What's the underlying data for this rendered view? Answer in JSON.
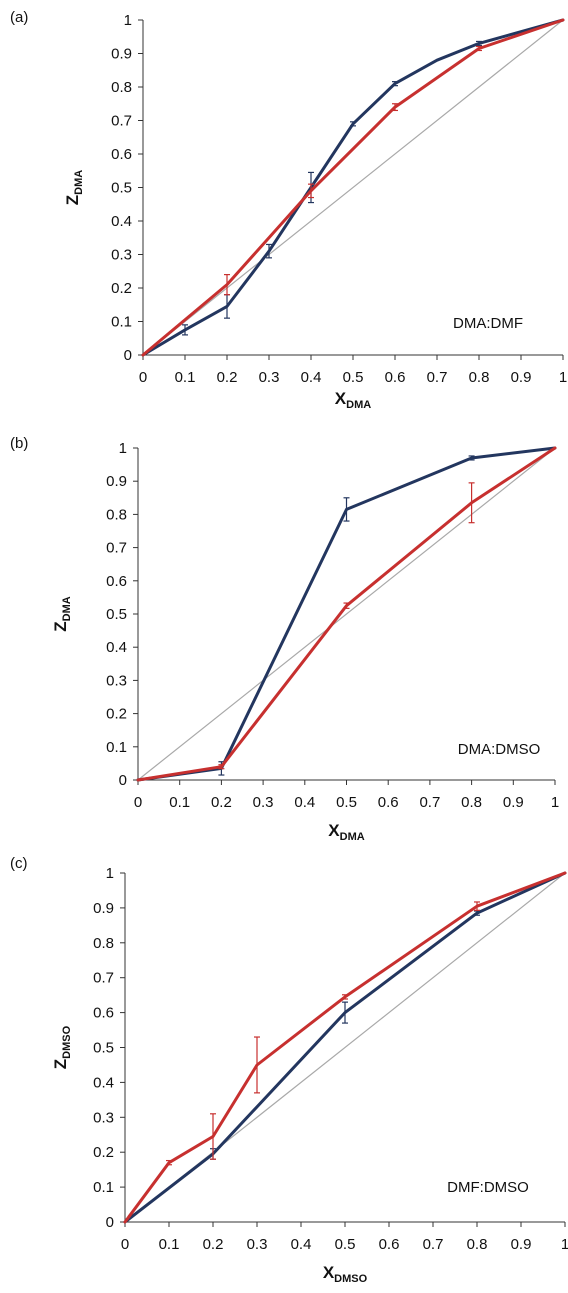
{
  "colors": {
    "blue": "#23365f",
    "red": "#c7302f",
    "diagonal": "#a9a9a9",
    "axis": "#333333"
  },
  "chart_data": [
    {
      "type": "line",
      "panel_label": "(a)",
      "annotation": "DMA:DMF",
      "xlabel": "X",
      "xlabel_sub": "DMA",
      "ylabel": "Z",
      "ylabel_sub": "DMA",
      "xlim": [
        0,
        1
      ],
      "ylim": [
        0,
        1
      ],
      "xticks": [
        "0",
        "0.1",
        "0.2",
        "0.3",
        "0.4",
        "0.5",
        "0.6",
        "0.7",
        "0.8",
        "0.9",
        "1"
      ],
      "yticks": [
        "0",
        "0.1",
        "0.2",
        "0.3",
        "0.4",
        "0.5",
        "0.6",
        "0.7",
        "0.8",
        "0.9",
        "1"
      ],
      "series": [
        {
          "color": "blue",
          "x": [
            0,
            0.1,
            0.2,
            0.3,
            0.4,
            0.5,
            0.6,
            0.7,
            0.8,
            1
          ],
          "y": [
            0,
            0.075,
            0.145,
            0.31,
            0.5,
            0.69,
            0.81,
            0.88,
            0.93,
            1
          ],
          "err": [
            0,
            0.015,
            0.035,
            0.02,
            0.045,
            0.006,
            0.006,
            0,
            0.006,
            0
          ]
        },
        {
          "color": "red",
          "x": [
            0,
            0.2,
            0.4,
            0.6,
            0.8,
            1
          ],
          "y": [
            0,
            0.21,
            0.49,
            0.74,
            0.915,
            1
          ],
          "err": [
            0,
            0.03,
            0.02,
            0.01,
            0.006,
            0
          ]
        },
        {
          "color": "diagonal",
          "x": [
            0,
            1
          ],
          "y": [
            0,
            1
          ],
          "err": [
            0,
            0
          ]
        }
      ]
    },
    {
      "type": "line",
      "panel_label": "(b)",
      "annotation": "DMA:DMSO",
      "xlabel": "X",
      "xlabel_sub": "DMA",
      "ylabel": "Z",
      "ylabel_sub": "DMA",
      "xlim": [
        0,
        1
      ],
      "ylim": [
        0,
        1
      ],
      "xticks": [
        "0",
        "0.1",
        "0.2",
        "0.3",
        "0.4",
        "0.5",
        "0.6",
        "0.7",
        "0.8",
        "0.9",
        "1"
      ],
      "yticks": [
        "0",
        "0.1",
        "0.2",
        "0.3",
        "0.4",
        "0.5",
        "0.6",
        "0.7",
        "0.8",
        "0.9",
        "1"
      ],
      "series": [
        {
          "color": "blue",
          "x": [
            0,
            0.2,
            0.5,
            0.8,
            1
          ],
          "y": [
            0,
            0.035,
            0.815,
            0.97,
            1
          ],
          "err": [
            0,
            0.02,
            0.035,
            0.006,
            0
          ]
        },
        {
          "color": "red",
          "x": [
            0,
            0.2,
            0.5,
            0.8,
            1
          ],
          "y": [
            0,
            0.04,
            0.525,
            0.835,
            1
          ],
          "err": [
            0,
            0.006,
            0.008,
            0.06,
            0
          ]
        },
        {
          "color": "diagonal",
          "x": [
            0,
            1
          ],
          "y": [
            0,
            1
          ],
          "err": [
            0,
            0
          ]
        }
      ]
    },
    {
      "type": "line",
      "panel_label": "(c)",
      "annotation": "DMF:DMSO",
      "xlabel": "X",
      "xlabel_sub": "DMSO",
      "ylabel": "Z",
      "ylabel_sub": "DMSO",
      "xlim": [
        0,
        1
      ],
      "ylim": [
        0,
        1
      ],
      "xticks": [
        "0",
        "0.1",
        "0.2",
        "0.3",
        "0.4",
        "0.5",
        "0.6",
        "0.7",
        "0.8",
        "0.9",
        "1"
      ],
      "yticks": [
        "0",
        "0.1",
        "0.2",
        "0.3",
        "0.4",
        "0.5",
        "0.6",
        "0.7",
        "0.8",
        "0.9",
        "1"
      ],
      "series": [
        {
          "color": "blue",
          "x": [
            0,
            0.2,
            0.5,
            0.8,
            1
          ],
          "y": [
            0,
            0.195,
            0.6,
            0.885,
            1
          ],
          "err": [
            0,
            0.015,
            0.03,
            0.006,
            0
          ]
        },
        {
          "color": "red",
          "x": [
            0,
            0.1,
            0.2,
            0.3,
            0.5,
            0.8,
            1
          ],
          "y": [
            0,
            0.17,
            0.245,
            0.45,
            0.645,
            0.905,
            1
          ],
          "err": [
            0,
            0.006,
            0.065,
            0.08,
            0.006,
            0.012,
            0
          ]
        },
        {
          "color": "diagonal",
          "x": [
            0,
            1
          ],
          "y": [
            0,
            1
          ],
          "err": [
            0,
            0
          ]
        }
      ]
    }
  ]
}
